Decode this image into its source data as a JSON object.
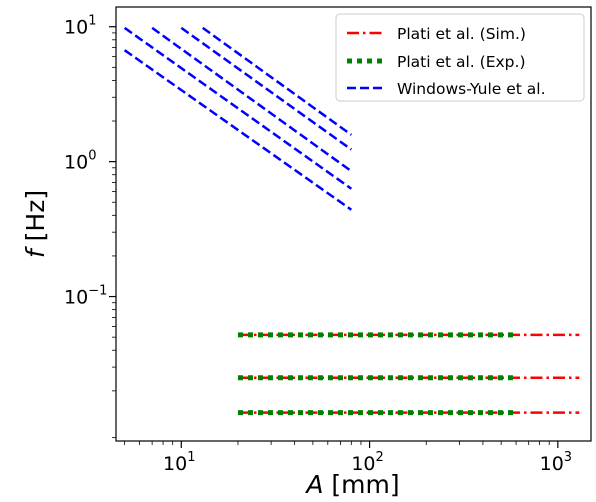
{
  "chart_data": {
    "type": "line",
    "xscale": "log",
    "yscale": "log",
    "xlim": [
      4.5,
      1500
    ],
    "ylim": [
      0.0085,
      14
    ],
    "xlabel": {
      "var": "A",
      "unit": " [mm]"
    },
    "ylabel": {
      "var": "f",
      "unit": " [Hz]"
    },
    "xticks": [
      {
        "value": 10,
        "base": "10",
        "exp": "1"
      },
      {
        "value": 100,
        "base": "10",
        "exp": "2"
      },
      {
        "value": 1000,
        "base": "10",
        "exp": "3"
      }
    ],
    "yticks": [
      {
        "value": 0.1,
        "base": "10",
        "exp": "−1"
      },
      {
        "value": 1,
        "base": "10",
        "exp": "0"
      },
      {
        "value": 10,
        "base": "10",
        "exp": "1"
      }
    ],
    "grid": false,
    "legend_position": "top-right",
    "legend": [
      {
        "label": "Plati et al. (Sim.)",
        "color": "#ff0000",
        "style": "dashdot"
      },
      {
        "label": "Plati et al. (Exp.)",
        "color": "#008000",
        "style": "dotted"
      },
      {
        "label": "Windows-Yule et al.",
        "color": "#0000ff",
        "style": "dashed"
      }
    ],
    "series": [
      {
        "group": "Windows-Yule et al.",
        "color": "#0000ff",
        "style": "dashed",
        "lines": [
          {
            "x": [
              5,
              80
            ],
            "y": [
              6.7,
              0.44
            ]
          },
          {
            "x": [
              5,
              80
            ],
            "y": [
              9.8,
              0.63
            ]
          },
          {
            "x": [
              7,
              80
            ],
            "y": [
              9.8,
              0.85
            ]
          },
          {
            "x": [
              10,
              80
            ],
            "y": [
              9.8,
              1.23
            ]
          },
          {
            "x": [
              13,
              80
            ],
            "y": [
              9.8,
              1.58
            ]
          }
        ]
      },
      {
        "group": "Plati et al. (Sim.)",
        "color": "#ff0000",
        "style": "dashdot",
        "lines": [
          {
            "x": [
              20,
              1300
            ],
            "y": [
              0.052,
              0.052
            ]
          },
          {
            "x": [
              20,
              1300
            ],
            "y": [
              0.025,
              0.025
            ]
          },
          {
            "x": [
              20,
              1300
            ],
            "y": [
              0.0138,
              0.0138
            ]
          }
        ]
      },
      {
        "group": "Plati et al. (Exp.)",
        "color": "#008000",
        "style": "dotted",
        "lines": [
          {
            "x": [
              20,
              600
            ],
            "y": [
              0.052,
              0.052
            ]
          },
          {
            "x": [
              20,
              600
            ],
            "y": [
              0.025,
              0.025
            ]
          },
          {
            "x": [
              20,
              600
            ],
            "y": [
              0.0138,
              0.0138
            ]
          }
        ]
      }
    ]
  }
}
